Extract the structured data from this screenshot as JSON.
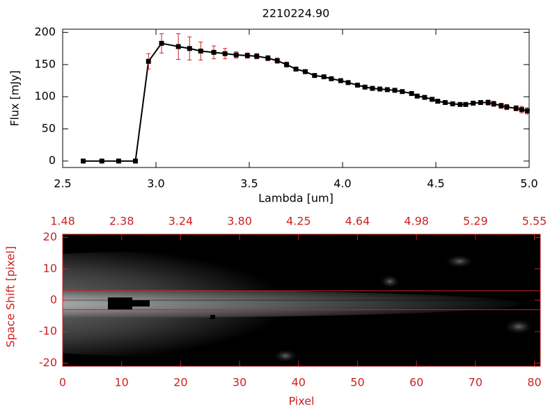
{
  "chart_data": [
    {
      "type": "line",
      "title": "2210224.90",
      "xlabel": "Lambda [um]",
      "ylabel": "Flux [mJy]",
      "color": "#000000",
      "error_color": "#cc2222",
      "x": [
        2.61,
        2.71,
        2.8,
        2.89,
        2.96,
        3.03,
        3.12,
        3.18,
        3.24,
        3.31,
        3.37,
        3.43,
        3.49,
        3.54,
        3.6,
        3.65,
        3.7,
        3.75,
        3.8,
        3.85,
        3.9,
        3.94,
        3.99,
        4.03,
        4.08,
        4.12,
        4.16,
        4.2,
        4.24,
        4.28,
        4.32,
        4.37,
        4.4,
        4.44,
        4.48,
        4.51,
        4.55,
        4.59,
        4.63,
        4.66,
        4.7,
        4.74,
        4.78,
        4.81,
        4.85,
        4.88,
        4.93,
        4.96,
        4.99
      ],
      "values": [
        0,
        0,
        0,
        0,
        155,
        183,
        178,
        175,
        171,
        169,
        167,
        165,
        164,
        163,
        160,
        156,
        150,
        143,
        139,
        133,
        131,
        128,
        125,
        122,
        118,
        115,
        113,
        112,
        111,
        110,
        108,
        105,
        101,
        99,
        96,
        93,
        91,
        89,
        88,
        88,
        90,
        91,
        91,
        89,
        86,
        84,
        82,
        80,
        78
      ],
      "errors": [
        1,
        1,
        1,
        1,
        12,
        15,
        20,
        18,
        14,
        10,
        8,
        5,
        4,
        4,
        4,
        4,
        4,
        3,
        3,
        3,
        3,
        3,
        3,
        3,
        3,
        3,
        3,
        3,
        3,
        3,
        3,
        3,
        3,
        3,
        3,
        3,
        3,
        3,
        3,
        3,
        3,
        3,
        4,
        4,
        4,
        4,
        4,
        5,
        5
      ],
      "xlim": [
        2.5,
        5.0
      ],
      "xticks": [
        2.5,
        {
          "value": 3.0,
          "label": "3.0"
        },
        3.5,
        {
          "value": 4.0,
          "label": "4.0"
        },
        4.5,
        {
          "value": 5.0,
          "label": "5.0"
        }
      ],
      "ylim": [
        -10,
        205
      ],
      "yticks": [
        0,
        50,
        100,
        150,
        200
      ]
    },
    {
      "type": "image",
      "xlabel": "Pixel",
      "ylabel": "Space Shift [pixel]",
      "color": "#cc2222",
      "xlim": [
        0,
        81
      ],
      "xticks": [
        0,
        10,
        20,
        30,
        40,
        50,
        60,
        70,
        80
      ],
      "x2ticks": [
        {
          "value": 0,
          "label": "1.48"
        },
        {
          "value": 10,
          "label": "2.38"
        },
        {
          "value": 20,
          "label": "3.24"
        },
        {
          "value": 30,
          "label": "3.80"
        },
        {
          "value": 40,
          "label": "4.25"
        },
        {
          "value": 50,
          "label": "4.64"
        },
        {
          "value": 60,
          "label": "4.98"
        },
        {
          "value": 70,
          "label": "5.29"
        },
        {
          "value": 80,
          "label": "5.55"
        }
      ],
      "ylim": [
        -21,
        21
      ],
      "yticks": [
        -20,
        -10,
        0,
        10,
        20
      ],
      "hlines": [
        3,
        -3
      ]
    }
  ]
}
